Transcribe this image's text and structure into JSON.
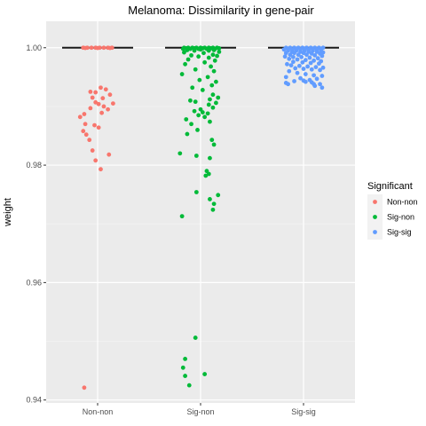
{
  "chart_data": {
    "type": "scatter",
    "title": "Melanoma: Dissimilarity in gene-pair",
    "xlabel": "",
    "ylabel": "weight",
    "categories": [
      "Non-non",
      "Sig-non",
      "Sig-sig"
    ],
    "ylim": [
      0.9395,
      1.0045
    ],
    "yticks": [
      0.94,
      0.96,
      0.98,
      1.0
    ],
    "ytick_labels": [
      "0.94",
      "0.96",
      "0.98",
      "1.00"
    ],
    "grid": true,
    "legend": {
      "title": "Significant",
      "position": "right",
      "entries": [
        "Non-non",
        "Sig-non",
        "Sig-sig"
      ]
    },
    "colors": {
      "Non-non": "#F8766D",
      "Sig-non": "#00BA38",
      "Sig-sig": "#619CFF"
    },
    "medians": [
      1.0,
      1.0,
      1.0
    ],
    "series": [
      {
        "name": "Non-non",
        "points": [
          [
            -0.14,
            1.0
          ],
          [
            -0.1,
            1.0
          ],
          [
            -0.06,
            1.0
          ],
          [
            -0.02,
            1.0
          ],
          [
            0.02,
            1.0
          ],
          [
            0.06,
            1.0
          ],
          [
            0.1,
            1.0
          ],
          [
            0.14,
            1.0
          ],
          [
            -0.12,
            0.99995
          ],
          [
            0.0,
            0.99995
          ],
          [
            0.12,
            0.99995
          ],
          [
            0.03,
            0.9932
          ],
          [
            0.08,
            0.9929
          ],
          [
            -0.07,
            0.9925
          ],
          [
            -0.02,
            0.9924
          ],
          [
            0.12,
            0.992
          ],
          [
            -0.05,
            0.9915
          ],
          [
            0.05,
            0.9914
          ],
          [
            0.15,
            0.9905
          ],
          [
            -0.02,
            0.9907
          ],
          [
            0.01,
            0.9904
          ],
          [
            0.06,
            0.99
          ],
          [
            -0.07,
            0.9897
          ],
          [
            0.1,
            0.9895
          ],
          [
            -0.13,
            0.9887
          ],
          [
            0.04,
            0.9889
          ],
          [
            -0.17,
            0.9882
          ],
          [
            -0.12,
            0.987
          ],
          [
            -0.03,
            0.9868
          ],
          [
            0.01,
            0.9864
          ],
          [
            -0.14,
            0.9858
          ],
          [
            -0.11,
            0.9852
          ],
          [
            -0.08,
            0.9843
          ],
          [
            -0.05,
            0.9825
          ],
          [
            0.11,
            0.9818
          ],
          [
            -0.02,
            0.9808
          ],
          [
            0.03,
            0.9793
          ],
          [
            -0.13,
            0.9421
          ]
        ]
      },
      {
        "name": "Sig-non",
        "points": [
          [
            -0.16,
            1.0
          ],
          [
            -0.12,
            1.0
          ],
          [
            -0.08,
            1.0
          ],
          [
            -0.04,
            1.0
          ],
          [
            0.0,
            1.0
          ],
          [
            0.04,
            1.0
          ],
          [
            0.08,
            1.0
          ],
          [
            0.12,
            1.0
          ],
          [
            0.16,
            1.0
          ],
          [
            -0.14,
            0.9999
          ],
          [
            -0.06,
            0.9999
          ],
          [
            0.02,
            0.9999
          ],
          [
            0.1,
            0.9999
          ],
          [
            0.18,
            0.9999
          ],
          [
            -0.17,
            0.9998
          ],
          [
            -0.1,
            0.9998
          ],
          [
            -0.02,
            0.9998
          ],
          [
            0.06,
            0.9998
          ],
          [
            0.14,
            0.9998
          ],
          [
            -0.13,
            0.9996
          ],
          [
            0.0,
            0.9997
          ],
          [
            0.13,
            0.9996
          ],
          [
            -0.06,
            0.9995
          ],
          [
            0.08,
            0.9995
          ],
          [
            0.18,
            0.9993
          ],
          [
            -0.16,
            0.9992
          ],
          [
            0.03,
            0.9991
          ],
          [
            0.12,
            0.9988
          ],
          [
            -0.09,
            0.9987
          ],
          [
            0.16,
            0.9986
          ],
          [
            -0.02,
            0.9985
          ],
          [
            0.08,
            0.9983
          ],
          [
            -0.12,
            0.998
          ],
          [
            0.14,
            0.9978
          ],
          [
            0.04,
            0.9975
          ],
          [
            -0.15,
            0.9972
          ],
          [
            0.1,
            0.9968
          ],
          [
            -0.05,
            0.9963
          ],
          [
            0.13,
            0.996
          ],
          [
            -0.18,
            0.9955
          ],
          [
            0.07,
            0.995
          ],
          [
            -0.01,
            0.9945
          ],
          [
            0.15,
            0.9942
          ],
          [
            0.11,
            0.9936
          ],
          [
            -0.08,
            0.9932
          ],
          [
            0.02,
            0.9928
          ],
          [
            0.12,
            0.992
          ],
          [
            0.17,
            0.9915
          ],
          [
            0.09,
            0.9912
          ],
          [
            -0.1,
            0.991
          ],
          [
            -0.05,
            0.9908
          ],
          [
            0.15,
            0.9906
          ],
          [
            0.08,
            0.9903
          ],
          [
            0.12,
            0.9898
          ],
          [
            0.0,
            0.9895
          ],
          [
            -0.06,
            0.9892
          ],
          [
            0.02,
            0.989
          ],
          [
            0.07,
            0.9888
          ],
          [
            -0.02,
            0.9885
          ],
          [
            0.04,
            0.9882
          ],
          [
            -0.14,
            0.9878
          ],
          [
            0.09,
            0.9874
          ],
          [
            -0.09,
            0.987
          ],
          [
            -0.03,
            0.986
          ],
          [
            -0.13,
            0.9853
          ],
          [
            0.11,
            0.9843
          ],
          [
            0.13,
            0.9835
          ],
          [
            -0.2,
            0.982
          ],
          [
            -0.04,
            0.9816
          ],
          [
            0.09,
            0.9812
          ],
          [
            0.06,
            0.979
          ],
          [
            0.08,
            0.9785
          ],
          [
            0.05,
            0.9782
          ],
          [
            -0.04,
            0.9754
          ],
          [
            0.17,
            0.9749
          ],
          [
            0.09,
            0.9742
          ],
          [
            0.13,
            0.9734
          ],
          [
            0.12,
            0.9724
          ],
          [
            -0.18,
            0.9713
          ],
          [
            -0.05,
            0.9506
          ],
          [
            -0.15,
            0.947
          ],
          [
            -0.17,
            0.9455
          ],
          [
            0.04,
            0.9444
          ],
          [
            -0.15,
            0.9441
          ],
          [
            -0.11,
            0.9425
          ]
        ]
      },
      {
        "name": "Sig-sig",
        "points": [
          [
            -0.17,
            1.0
          ],
          [
            -0.13,
            1.0
          ],
          [
            -0.09,
            1.0
          ],
          [
            -0.05,
            1.0
          ],
          [
            -0.01,
            1.0
          ],
          [
            0.03,
            1.0
          ],
          [
            0.07,
            1.0
          ],
          [
            0.11,
            1.0
          ],
          [
            0.15,
            1.0
          ],
          [
            0.19,
            1.0
          ],
          [
            -0.15,
            0.99985
          ],
          [
            -0.07,
            0.99985
          ],
          [
            0.01,
            0.99985
          ],
          [
            0.09,
            0.99985
          ],
          [
            0.17,
            0.99985
          ],
          [
            -0.19,
            0.9997
          ],
          [
            -0.11,
            0.9997
          ],
          [
            -0.03,
            0.9997
          ],
          [
            0.05,
            0.9997
          ],
          [
            0.13,
            0.9997
          ],
          [
            -0.15,
            0.9995
          ],
          [
            -0.07,
            0.9995
          ],
          [
            0.01,
            0.9995
          ],
          [
            0.09,
            0.9995
          ],
          [
            0.17,
            0.9995
          ],
          [
            -0.11,
            0.9993
          ],
          [
            -0.03,
            0.9993
          ],
          [
            0.05,
            0.9993
          ],
          [
            0.13,
            0.9993
          ],
          [
            0.19,
            0.9992
          ],
          [
            -0.17,
            0.9991
          ],
          [
            -0.09,
            0.9991
          ],
          [
            0.0,
            0.9991
          ],
          [
            0.08,
            0.999
          ],
          [
            0.16,
            0.999
          ],
          [
            -0.13,
            0.9988
          ],
          [
            -0.05,
            0.9988
          ],
          [
            0.03,
            0.9988
          ],
          [
            0.11,
            0.9987
          ],
          [
            0.18,
            0.9986
          ],
          [
            -0.18,
            0.9985
          ],
          [
            -0.1,
            0.9984
          ],
          [
            -0.02,
            0.9984
          ],
          [
            0.06,
            0.9983
          ],
          [
            0.14,
            0.9982
          ],
          [
            -0.14,
            0.9981
          ],
          [
            -0.06,
            0.998
          ],
          [
            0.02,
            0.9979
          ],
          [
            0.1,
            0.9978
          ],
          [
            0.17,
            0.9977
          ],
          [
            -0.1,
            0.9976
          ],
          [
            -0.01,
            0.9975
          ],
          [
            0.07,
            0.9974
          ],
          [
            0.15,
            0.9973
          ],
          [
            -0.16,
            0.9972
          ],
          [
            -0.12,
            0.997
          ],
          [
            -0.04,
            0.9969
          ],
          [
            0.04,
            0.9968
          ],
          [
            0.12,
            0.9967
          ],
          [
            0.19,
            0.9966
          ],
          [
            -0.08,
            0.9965
          ],
          [
            0.0,
            0.9964
          ],
          [
            0.08,
            0.9963
          ],
          [
            0.16,
            0.9962
          ],
          [
            -0.14,
            0.996
          ],
          [
            -0.06,
            0.9957
          ],
          [
            0.02,
            0.9955
          ],
          [
            0.1,
            0.9953
          ],
          [
            0.18,
            0.9952
          ],
          [
            -0.17,
            0.995
          ],
          [
            -0.03,
            0.9948
          ],
          [
            0.13,
            0.9947
          ],
          [
            0.06,
            0.9945
          ],
          [
            -0.09,
            0.9943
          ],
          [
            0.02,
            0.9942
          ],
          [
            0.08,
            0.9941
          ],
          [
            -0.17,
            0.994
          ],
          [
            -0.15,
            0.9938
          ],
          [
            0.1,
            0.9938
          ],
          [
            0.16,
            0.9938
          ],
          [
            0.11,
            0.9935
          ],
          [
            0.18,
            0.9932
          ],
          [
            0.0,
            0.9944
          ]
        ]
      }
    ]
  }
}
